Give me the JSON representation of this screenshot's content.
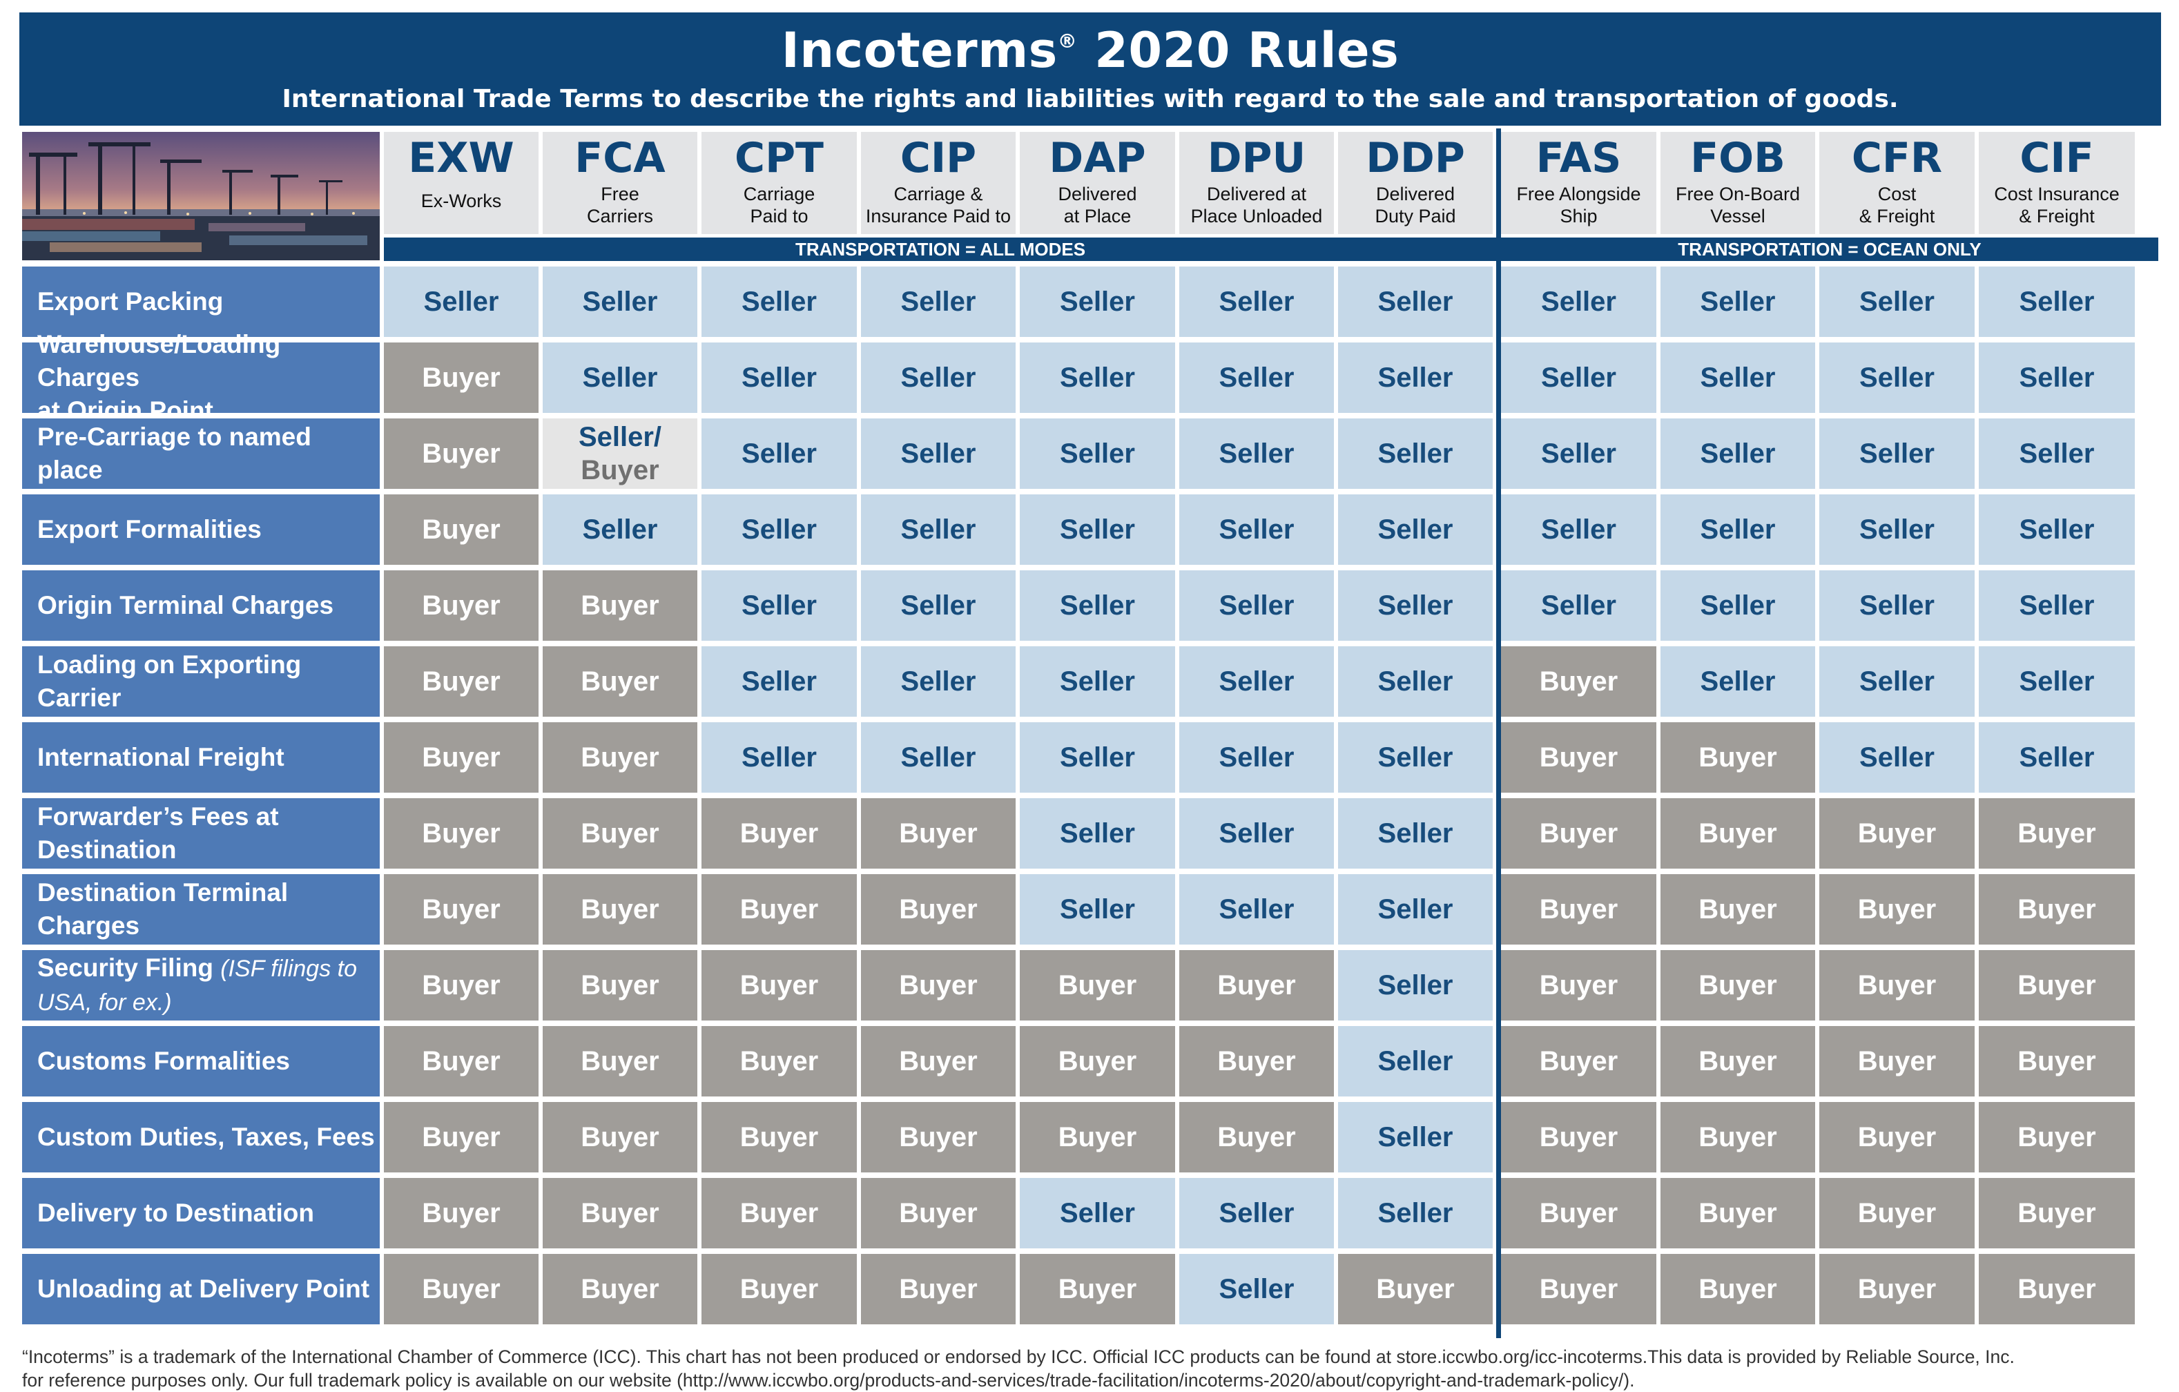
{
  "header": {
    "title": "Incoterms",
    "title_mark": "®",
    "title_rest": " 2020 Rules",
    "subtitle": "International Trade Terms to describe the rights and liabilities with regard to the sale and transportation of goods."
  },
  "terms": [
    {
      "code": "EXW",
      "desc1": "Ex-Works",
      "desc2": ""
    },
    {
      "code": "FCA",
      "desc1": "Free",
      "desc2": "Carriers"
    },
    {
      "code": "CPT",
      "desc1": "Carriage",
      "desc2": "Paid to"
    },
    {
      "code": "CIP",
      "desc1": "Carriage &",
      "desc2": "Insurance Paid to"
    },
    {
      "code": "DAP",
      "desc1": "Delivered",
      "desc2": "at Place"
    },
    {
      "code": "DPU",
      "desc1": "Delivered at",
      "desc2": "Place Unloaded"
    },
    {
      "code": "DDP",
      "desc1": "Delivered",
      "desc2": "Duty Paid"
    },
    {
      "code": "FAS",
      "desc1": "Free Alongside",
      "desc2": "Ship"
    },
    {
      "code": "FOB",
      "desc1": "Free On-Board",
      "desc2": "Vessel"
    },
    {
      "code": "CFR",
      "desc1": "Cost",
      "desc2": "& Freight"
    },
    {
      "code": "CIF",
      "desc1": "Cost Insurance",
      "desc2": "& Freight"
    }
  ],
  "modes": {
    "all": "TRANSPORTATION = ALL MODES",
    "ocean": "TRANSPORTATION = OCEAN ONLY"
  },
  "rows": [
    {
      "label": "Export Packing",
      "label2": "",
      "note": "",
      "values": [
        "Seller",
        "Seller",
        "Seller",
        "Seller",
        "Seller",
        "Seller",
        "Seller",
        "Seller",
        "Seller",
        "Seller",
        "Seller"
      ]
    },
    {
      "label": "Warehouse/Loading Charges",
      "label2": "at Origin Point",
      "note": "",
      "values": [
        "Buyer",
        "Seller",
        "Seller",
        "Seller",
        "Seller",
        "Seller",
        "Seller",
        "Seller",
        "Seller",
        "Seller",
        "Seller"
      ]
    },
    {
      "label": "Pre-Carriage to named place",
      "label2": "",
      "note": "",
      "values": [
        "Buyer",
        "Seller/|Buyer",
        "Seller",
        "Seller",
        "Seller",
        "Seller",
        "Seller",
        "Seller",
        "Seller",
        "Seller",
        "Seller"
      ]
    },
    {
      "label": "Export Formalities",
      "label2": "",
      "note": "",
      "values": [
        "Buyer",
        "Seller",
        "Seller",
        "Seller",
        "Seller",
        "Seller",
        "Seller",
        "Seller",
        "Seller",
        "Seller",
        "Seller"
      ]
    },
    {
      "label": "Origin Terminal Charges",
      "label2": "",
      "note": "",
      "values": [
        "Buyer",
        "Buyer",
        "Seller",
        "Seller",
        "Seller",
        "Seller",
        "Seller",
        "Seller",
        "Seller",
        "Seller",
        "Seller"
      ]
    },
    {
      "label": "Loading on Exporting Carrier",
      "label2": "",
      "note": "",
      "values": [
        "Buyer",
        "Buyer",
        "Seller",
        "Seller",
        "Seller",
        "Seller",
        "Seller",
        "Buyer",
        "Seller",
        "Seller",
        "Seller"
      ]
    },
    {
      "label": "International Freight",
      "label2": "",
      "note": "",
      "values": [
        "Buyer",
        "Buyer",
        "Seller",
        "Seller",
        "Seller",
        "Seller",
        "Seller",
        "Buyer",
        "Buyer",
        "Seller",
        "Seller"
      ]
    },
    {
      "label": "Forwarder’s Fees at",
      "label2": "Destination",
      "note": "",
      "values": [
        "Buyer",
        "Buyer",
        "Buyer",
        "Buyer",
        "Seller",
        "Seller",
        "Seller",
        "Buyer",
        "Buyer",
        "Buyer",
        "Buyer"
      ]
    },
    {
      "label": "Destination Terminal Charges",
      "label2": "",
      "note": "",
      "values": [
        "Buyer",
        "Buyer",
        "Buyer",
        "Buyer",
        "Seller",
        "Seller",
        "Seller",
        "Buyer",
        "Buyer",
        "Buyer",
        "Buyer"
      ]
    },
    {
      "label": "Security Filing ",
      "label2": "USA, for ex.)",
      "note": "(ISF filings to",
      "values": [
        "Buyer",
        "Buyer",
        "Buyer",
        "Buyer",
        "Buyer",
        "Buyer",
        "Seller",
        "Buyer",
        "Buyer",
        "Buyer",
        "Buyer"
      ]
    },
    {
      "label": "Customs Formalities",
      "label2": "",
      "note": "",
      "values": [
        "Buyer",
        "Buyer",
        "Buyer",
        "Buyer",
        "Buyer",
        "Buyer",
        "Seller",
        "Buyer",
        "Buyer",
        "Buyer",
        "Buyer"
      ]
    },
    {
      "label": "Custom Duties, Taxes, Fees",
      "label2": "",
      "note": "",
      "values": [
        "Buyer",
        "Buyer",
        "Buyer",
        "Buyer",
        "Buyer",
        "Buyer",
        "Seller",
        "Buyer",
        "Buyer",
        "Buyer",
        "Buyer"
      ]
    },
    {
      "label": "Delivery to Destination",
      "label2": "",
      "note": "",
      "values": [
        "Buyer",
        "Buyer",
        "Buyer",
        "Buyer",
        "Seller",
        "Seller",
        "Seller",
        "Buyer",
        "Buyer",
        "Buyer",
        "Buyer"
      ]
    },
    {
      "label": "Unloading at Delivery Point",
      "label2": "",
      "note": "",
      "values": [
        "Buyer",
        "Buyer",
        "Buyer",
        "Buyer",
        "Buyer",
        "Seller",
        "Buyer",
        "Buyer",
        "Buyer",
        "Buyer",
        "Buyer"
      ]
    }
  ],
  "footnote": {
    "line1": "“Incoterms” is a trademark of the International Chamber of Commerce (ICC). This chart has not been produced or endorsed by ICC. Official ICC products can be found at store.iccwbo.org/icc-incoterms.This data is provided by Reliable Source, Inc.",
    "line2": "for reference purposes only. Our full trademark policy is available on our website (http://www.iccwbo.org/products-and-services/trade-facilitation/incoterms-2020/about/copyright-and-trademark-policy/)."
  },
  "colors": {
    "banner": "#0e4577",
    "row_label": "#4e7ab6",
    "seller_bg": "#c5d8e8",
    "seller_text": "#174c7c",
    "buyer_bg": "#a09d99",
    "buyer_text": "#ffffff",
    "mixed_bg": "#e5e5e5"
  }
}
